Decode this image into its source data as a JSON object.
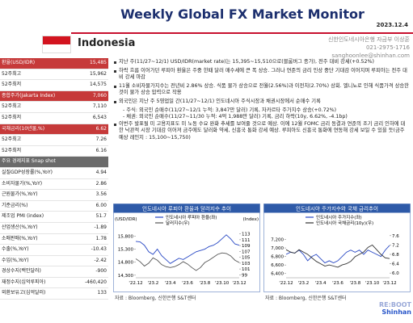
{
  "header": {
    "title": "Weekly Global FX Market Monitor",
    "date": "2023.12.4",
    "country": "Indonesia",
    "contact": [
      "신한인도네시아은행 자금부 이상훈",
      "021-2975-1716",
      "sanghoonlee@shinhan.com"
    ]
  },
  "sidebar": {
    "groups": [
      {
        "title": "환율(USD/IDR)",
        "value": "15,485",
        "rows": [
          [
            "52주최고",
            "15,962"
          ],
          [
            "52주최저",
            "14,575"
          ]
        ]
      },
      {
        "title": "종합주가(Jakarta Index)",
        "value": "7,060",
        "rows": [
          [
            "52주최고",
            "7,110"
          ],
          [
            "52주최저",
            "6,543"
          ]
        ]
      },
      {
        "title": "국채금리(10년물,%)",
        "value": "6.62",
        "rows": [
          [
            "52주최고",
            "7.26"
          ],
          [
            "52주최저",
            "6.16"
          ]
        ]
      }
    ],
    "snapshot": {
      "title": "주요 경제지표 Snap shot",
      "rows": [
        [
          "실질GDP성장률(%,YoY)",
          "4.94"
        ],
        [
          "소비자물가(%,YoY)",
          "2.86"
        ],
        [
          "근원물가(%,YoY)",
          "3.56"
        ],
        [
          "기준금리(%)",
          "6.00"
        ],
        [
          "제조업 PMI (index)",
          "51.7"
        ],
        [
          "산업생산(%,YoY)",
          "-1.89"
        ],
        [
          "소매판매(%,YoY)",
          "1.78"
        ],
        [
          "수출(%,YoY)",
          "-10.43"
        ],
        [
          "수입(%,YoY)",
          "-2.42"
        ],
        [
          "경상수지(백만달러)",
          "-900"
        ],
        [
          "재정수지(십억루피아)",
          "-460,420"
        ],
        [
          "외환보유고(십억달러)",
          "133"
        ]
      ]
    }
  },
  "body": {
    "bullets": [
      {
        "text": "지난 주(11/27~12/1) USD/IDR(market rate)는 15,395~15,510으로(블룸버그 종가), 전주 대비 강세(+0.52%)",
        "subs": []
      },
      {
        "text": "하락 흐름 이어가던 루피아 환율은 주중 한때 달러 매수세에 큰 폭 상승. 그러나 연준의 금리 인상 중단 기대감 이어지며 루피아는 전주 대비 강세 마감",
        "subs": []
      },
      {
        "text": "11월 소비자물가지수는 전년비 2.86% 상승. 식품 물가 상승으로 전월(2.56%)과 이전치(2.70%) 상회. 엘니뇨로 인해 식품가격 상승한 것이 물가 상승 압력으로 작용",
        "subs": []
      },
      {
        "text": "외국인은 지난 주 5영업일 간(11/27~12/1) 인도네시아 주식시장과 채권시장에서 순매수 기록",
        "subs": [
          "- 주식: 외국인 순매수(11/27~12/1 누적: 3,847만 달러) 기록, 자카르타 주가지수 상승(+0.72%)",
          "- 채권: 외국인 순매수(11/27~11/30 누적: 4억 1,988만 달러) 기록, 금리 하락(10y, 6.62%, -4.1bp)"
        ]
      },
      {
        "text": "이번주 발표될 미 고용지표도 미 노동 수요 완화 추세를 보여줄 것으로 예상. 이에 12월 FOMC 금리 동결과 연준의 조기 금리 인하에 대한 낙관적 시장 기대감 이어져 금주에도 달러화 약세, 신흥국 통화 강세 예상. 루피아도 신흥국 통화에 연동해 강세 보일 수 있을 듯(금주 예상 레인지 : 15,100~15,750)",
        "subs": []
      }
    ]
  },
  "charts": [
    {
      "type": "line",
      "title": "인도네시아 루피아 환율과 달러지수 추이",
      "y_label": "(USD/IDR)",
      "y2_label": "(Index)",
      "categories": [
        "'22.12",
        null,
        null,
        null,
        "'23.2",
        null,
        null,
        null,
        "'23.4",
        null,
        null,
        null,
        "'23.6",
        null,
        null,
        null,
        "'23.8",
        null,
        null,
        null,
        "'23.10",
        null,
        null,
        null,
        "'23.12"
      ],
      "series": [
        {
          "name": "인도네시아 루피아 환율(좌)",
          "color": "#2747c4",
          "values": [
            15600,
            15580,
            15450,
            15200,
            15100,
            15300,
            15050,
            14900,
            14750,
            14850,
            14950,
            14900,
            15000,
            15100,
            15200,
            15250,
            15300,
            15400,
            15450,
            15550,
            15700,
            15850,
            15700,
            15500,
            15450
          ]
        },
        {
          "name": "달러지수(우)",
          "color": "#555555",
          "axis": "y2",
          "values": [
            104.5,
            103.5,
            102,
            103,
            104.8,
            104,
            102.5,
            101.8,
            101.5,
            101.8,
            102.5,
            103.5,
            102.7,
            101.5,
            100.5,
            101.5,
            103.2,
            104,
            105,
            106,
            106.5,
            106.3,
            105.5,
            104,
            103.2
          ]
        }
      ],
      "ylim": [
        14200,
        16000
      ],
      "yticks": [
        {
          "value": 14300,
          "label": "14,300"
        },
        {
          "value": 14800,
          "label": "14,800"
        },
        {
          "value": 15300,
          "label": "15,300"
        },
        {
          "value": 15800,
          "label": "15,800"
        }
      ],
      "y2lim": [
        98,
        114
      ],
      "y2ticks": [
        99,
        101,
        103,
        105,
        107,
        109,
        111,
        113
      ],
      "source": "자료 : Bloomberg, 신한은행 S&T센터"
    },
    {
      "type": "line",
      "title": "인도네시아 주가지수와 국채 금리추이",
      "categories": [
        "'22.12",
        null,
        null,
        null,
        "'23.2",
        null,
        null,
        null,
        "'23.4",
        null,
        null,
        null,
        "'23.6",
        null,
        null,
        null,
        "'23.8",
        null,
        null,
        null,
        "'23.10",
        null,
        null,
        null,
        "'23.12"
      ],
      "series": [
        {
          "name": "인도네시아 주가지수(좌)",
          "color": "#2747c4",
          "values": [
            6850,
            6900,
            6880,
            6950,
            6850,
            6700,
            6800,
            6850,
            6750,
            6650,
            6700,
            6650,
            6700,
            6800,
            6900,
            6950,
            6900,
            6950,
            6850,
            6950,
            6900,
            6850,
            6800,
            6950,
            7060
          ]
        },
        {
          "name": "인도네시아 국채금리(10y)(우)",
          "color": "#333333",
          "axis": "y2",
          "values": [
            7.0,
            6.9,
            6.85,
            7.0,
            6.9,
            6.8,
            6.65,
            6.5,
            6.4,
            6.3,
            6.35,
            6.3,
            6.25,
            6.35,
            6.4,
            6.5,
            6.7,
            6.8,
            6.9,
            7.1,
            7.2,
            7.0,
            6.8,
            6.65,
            6.62
          ]
        }
      ],
      "ylim": [
        6300,
        7400
      ],
      "yticks": [
        {
          "value": 6400,
          "label": "6,400"
        },
        {
          "value": 6600,
          "label": "6,600"
        },
        {
          "value": 6800,
          "label": "6,800"
        },
        {
          "value": 7000,
          "label": "7,000"
        },
        {
          "value": 7200,
          "label": "7,200"
        }
      ],
      "y2lim": [
        5.8,
        7.8
      ],
      "y2ticks": [
        {
          "value": 6,
          "label": "6.0"
        },
        6.4,
        6.8,
        7.2,
        7.6
      ],
      "source": "자료 : Bloomberg, 신한은행 S&T센터"
    }
  ],
  "logo": [
    "RE:BOOT",
    "Shinhan"
  ]
}
